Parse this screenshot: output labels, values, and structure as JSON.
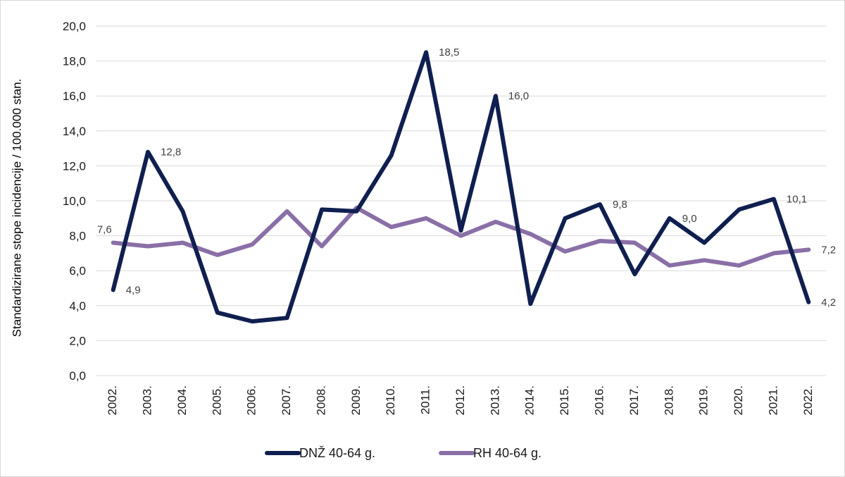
{
  "chart_data": {
    "type": "line",
    "title": "",
    "xlabel": "",
    "ylabel": "Standardizirane stope incidencije / 100.000 stan.",
    "ylim": [
      0,
      20
    ],
    "y_ticks": [
      "0,0",
      "2,0",
      "4,0",
      "6,0",
      "8,0",
      "10,0",
      "12,0",
      "14,0",
      "16,0",
      "18,0",
      "20,0"
    ],
    "y_tick_values": [
      0,
      2,
      4,
      6,
      8,
      10,
      12,
      14,
      16,
      18,
      20
    ],
    "grid": true,
    "legend_position": "bottom",
    "categories": [
      "2002.",
      "2003.",
      "2004.",
      "2005.",
      "2006.",
      "2007.",
      "2008.",
      "2009.",
      "2010.",
      "2011.",
      "2012.",
      "2013.",
      "2014.",
      "2015.",
      "2016.",
      "2017.",
      "2018.",
      "2019.",
      "2020.",
      "2021.",
      "2022."
    ],
    "series": [
      {
        "name": "DNŽ 40-64 g.",
        "color": "#0f1f4f",
        "values": [
          4.9,
          12.8,
          9.4,
          3.6,
          3.1,
          3.3,
          9.5,
          9.4,
          12.6,
          18.5,
          8.3,
          16.0,
          4.1,
          9.0,
          9.8,
          5.8,
          9.0,
          7.6,
          9.5,
          10.1,
          4.2
        ],
        "labels": [
          {
            "index": 0,
            "text": "4,9",
            "pos": "below-right"
          },
          {
            "index": 1,
            "text": "12,8",
            "pos": "right"
          },
          {
            "index": 9,
            "text": "18,5",
            "pos": "right"
          },
          {
            "index": 11,
            "text": "16,0",
            "pos": "right"
          },
          {
            "index": 14,
            "text": "9,8",
            "pos": "right"
          },
          {
            "index": 16,
            "text": "9,0",
            "pos": "right"
          },
          {
            "index": 19,
            "text": "10,1",
            "pos": "right"
          },
          {
            "index": 20,
            "text": "4,2",
            "pos": "right"
          }
        ]
      },
      {
        "name": "RH 40-64 g.",
        "color": "#8a6fa7",
        "values": [
          7.6,
          7.4,
          7.6,
          6.9,
          7.5,
          9.4,
          7.4,
          9.6,
          8.5,
          9.0,
          8.0,
          8.8,
          8.1,
          7.1,
          7.7,
          7.6,
          6.3,
          6.6,
          6.3,
          7.0,
          7.2
        ],
        "labels": [
          {
            "index": 0,
            "text": "7,6",
            "pos": "above-left"
          },
          {
            "index": 20,
            "text": "7,2",
            "pos": "right"
          }
        ]
      }
    ]
  }
}
